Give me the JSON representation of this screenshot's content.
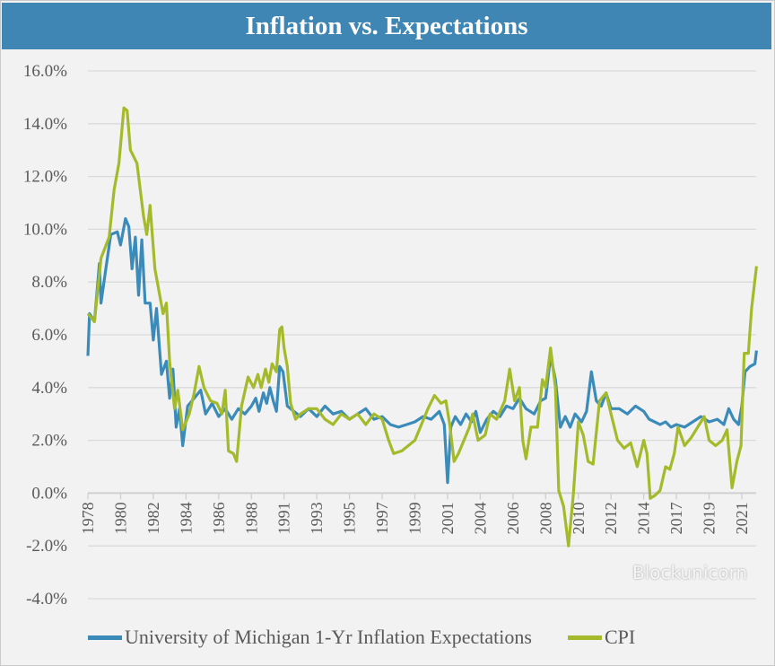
{
  "header": {
    "title": "Inflation vs. Expectations"
  },
  "watermark": "Blockunicorn",
  "chart_data": {
    "type": "line",
    "title": "Inflation vs. Expectations",
    "xlabel": "",
    "ylabel": "",
    "ylim": [
      -4,
      16
    ],
    "y_ticks": [
      "16.0%",
      "14.0%",
      "12.0%",
      "10.0%",
      "8.0%",
      "6.0%",
      "4.0%",
      "2.0%",
      "0.0%",
      "-2.0%",
      "-4.0%"
    ],
    "y_tick_values": [
      16,
      14,
      12,
      10,
      8,
      6,
      4,
      2,
      0,
      -2,
      -4
    ],
    "x_ticks": [
      "1978",
      "1980",
      "1982",
      "1984",
      "1986",
      "1988",
      "1991",
      "1993",
      "1995",
      "1997",
      "1999",
      "2001",
      "2004",
      "2006",
      "2008",
      "2010",
      "2012",
      "2014",
      "2017",
      "2019",
      "2021"
    ],
    "grid": "horizontal",
    "legend_position": "bottom",
    "colors": {
      "michigan": "#3b8bba",
      "cpi": "#a5ba2a",
      "header": "#3f86b5"
    },
    "series": [
      {
        "name": "University of Michigan 1-Yr Inflation Expectations",
        "points": [
          [
            1978.0,
            5.2
          ],
          [
            1978.1,
            6.8
          ],
          [
            1978.4,
            6.5
          ],
          [
            1978.7,
            8.7
          ],
          [
            1978.8,
            7.2
          ],
          [
            1979.1,
            8.5
          ],
          [
            1979.4,
            9.8
          ],
          [
            1979.8,
            9.9
          ],
          [
            1980.0,
            9.4
          ],
          [
            1980.3,
            10.4
          ],
          [
            1980.5,
            10.1
          ],
          [
            1980.7,
            8.5
          ],
          [
            1980.9,
            9.7
          ],
          [
            1981.1,
            7.5
          ],
          [
            1981.3,
            9.6
          ],
          [
            1981.5,
            7.2
          ],
          [
            1981.8,
            7.2
          ],
          [
            1982.0,
            5.8
          ],
          [
            1982.2,
            7.0
          ],
          [
            1982.5,
            4.5
          ],
          [
            1982.8,
            5.0
          ],
          [
            1983.0,
            3.6
          ],
          [
            1983.2,
            4.7
          ],
          [
            1983.4,
            2.5
          ],
          [
            1983.6,
            3.2
          ],
          [
            1983.8,
            1.8
          ],
          [
            1984.1,
            3.3
          ],
          [
            1984.5,
            3.6
          ],
          [
            1984.9,
            3.9
          ],
          [
            1985.2,
            3.0
          ],
          [
            1985.6,
            3.4
          ],
          [
            1986.0,
            2.9
          ],
          [
            1986.4,
            3.2
          ],
          [
            1986.8,
            2.8
          ],
          [
            1987.2,
            3.2
          ],
          [
            1987.6,
            3.0
          ],
          [
            1988.0,
            3.3
          ],
          [
            1988.4,
            3.6
          ],
          [
            1988.7,
            3.1
          ],
          [
            1989.1,
            3.8
          ],
          [
            1989.4,
            3.4
          ],
          [
            1989.7,
            4.0
          ],
          [
            1990.0,
            3.5
          ],
          [
            1990.3,
            3.1
          ],
          [
            1990.6,
            4.8
          ],
          [
            1990.9,
            4.6
          ],
          [
            1991.2,
            3.3
          ],
          [
            1991.6,
            3.1
          ],
          [
            1992.0,
            2.9
          ],
          [
            1992.5,
            3.2
          ],
          [
            1993.0,
            2.9
          ],
          [
            1993.5,
            3.3
          ],
          [
            1994.0,
            3.0
          ],
          [
            1994.5,
            3.1
          ],
          [
            1995.0,
            2.8
          ],
          [
            1995.5,
            3.0
          ],
          [
            1996.0,
            3.2
          ],
          [
            1996.5,
            2.8
          ],
          [
            1997.0,
            2.9
          ],
          [
            1997.5,
            2.6
          ],
          [
            1998.0,
            2.5
          ],
          [
            1998.5,
            2.6
          ],
          [
            1999.0,
            2.7
          ],
          [
            1999.5,
            2.9
          ],
          [
            2000.0,
            2.8
          ],
          [
            2000.5,
            3.1
          ],
          [
            2000.8,
            2.6
          ],
          [
            2001.0,
            0.4
          ],
          [
            2001.3,
            2.5
          ],
          [
            2001.7,
            2.9
          ],
          [
            2002.2,
            2.6
          ],
          [
            2002.7,
            3.0
          ],
          [
            2003.2,
            2.7
          ],
          [
            2003.6,
            3.1
          ],
          [
            2004.0,
            2.3
          ],
          [
            2004.4,
            2.8
          ],
          [
            2004.8,
            3.1
          ],
          [
            2005.2,
            2.9
          ],
          [
            2005.6,
            3.3
          ],
          [
            2006.0,
            3.2
          ],
          [
            2006.4,
            3.6
          ],
          [
            2006.8,
            3.2
          ],
          [
            2007.3,
            3.0
          ],
          [
            2007.7,
            3.5
          ],
          [
            2008.0,
            3.6
          ],
          [
            2008.3,
            5.2
          ],
          [
            2008.6,
            4.3
          ],
          [
            2008.9,
            2.5
          ],
          [
            2009.2,
            2.9
          ],
          [
            2009.5,
            2.5
          ],
          [
            2009.8,
            3.0
          ],
          [
            2010.2,
            2.7
          ],
          [
            2010.5,
            3.1
          ],
          [
            2010.8,
            4.6
          ],
          [
            2011.1,
            3.5
          ],
          [
            2011.4,
            3.3
          ],
          [
            2011.7,
            3.8
          ],
          [
            2012.0,
            3.2
          ],
          [
            2012.5,
            3.2
          ],
          [
            2013.0,
            3.0
          ],
          [
            2013.5,
            3.3
          ],
          [
            2014.0,
            3.1
          ],
          [
            2014.5,
            2.8
          ],
          [
            2015.0,
            2.7
          ],
          [
            2015.5,
            2.6
          ],
          [
            2016.0,
            2.7
          ],
          [
            2016.5,
            2.5
          ],
          [
            2017.0,
            2.6
          ],
          [
            2017.5,
            2.5
          ],
          [
            2018.0,
            2.7
          ],
          [
            2018.5,
            2.9
          ],
          [
            2019.0,
            2.7
          ],
          [
            2019.5,
            2.8
          ],
          [
            2019.9,
            2.6
          ],
          [
            2020.2,
            3.2
          ],
          [
            2020.5,
            2.8
          ],
          [
            2020.8,
            2.6
          ],
          [
            2021.0,
            3.3
          ],
          [
            2021.2,
            4.6
          ],
          [
            2021.5,
            4.8
          ],
          [
            2021.8,
            4.9
          ],
          [
            2021.9,
            5.4
          ]
        ]
      },
      {
        "name": "CPI",
        "points": [
          [
            1978.0,
            6.8
          ],
          [
            1978.4,
            6.5
          ],
          [
            1978.8,
            8.9
          ],
          [
            1979.3,
            9.7
          ],
          [
            1979.6,
            11.5
          ],
          [
            1979.9,
            12.5
          ],
          [
            1980.2,
            14.6
          ],
          [
            1980.4,
            14.5
          ],
          [
            1980.6,
            13.0
          ],
          [
            1981.0,
            12.5
          ],
          [
            1981.4,
            10.5
          ],
          [
            1981.6,
            9.8
          ],
          [
            1981.8,
            10.9
          ],
          [
            1982.1,
            8.5
          ],
          [
            1982.6,
            6.8
          ],
          [
            1982.8,
            7.2
          ],
          [
            1983.0,
            5.0
          ],
          [
            1983.3,
            3.2
          ],
          [
            1983.5,
            3.9
          ],
          [
            1983.8,
            2.4
          ],
          [
            1984.2,
            3.0
          ],
          [
            1984.5,
            3.8
          ],
          [
            1984.8,
            4.8
          ],
          [
            1985.1,
            4.0
          ],
          [
            1985.5,
            3.5
          ],
          [
            1985.9,
            3.4
          ],
          [
            1986.2,
            3.0
          ],
          [
            1986.4,
            3.9
          ],
          [
            1986.6,
            1.6
          ],
          [
            1986.9,
            1.5
          ],
          [
            1987.1,
            1.2
          ],
          [
            1987.4,
            3.3
          ],
          [
            1987.8,
            4.4
          ],
          [
            1988.2,
            4.0
          ],
          [
            1988.6,
            4.5
          ],
          [
            1988.9,
            4.0
          ],
          [
            1989.3,
            4.7
          ],
          [
            1989.6,
            4.2
          ],
          [
            1989.9,
            4.9
          ],
          [
            1990.3,
            4.6
          ],
          [
            1990.6,
            6.2
          ],
          [
            1990.8,
            6.3
          ],
          [
            1991.0,
            5.5
          ],
          [
            1991.2,
            4.8
          ],
          [
            1991.4,
            3.4
          ],
          [
            1991.7,
            2.8
          ],
          [
            1992.0,
            3.0
          ],
          [
            1992.5,
            3.2
          ],
          [
            1993.0,
            3.2
          ],
          [
            1993.5,
            2.8
          ],
          [
            1994.0,
            2.6
          ],
          [
            1994.5,
            3.0
          ],
          [
            1995.0,
            2.8
          ],
          [
            1995.5,
            3.0
          ],
          [
            1996.0,
            2.6
          ],
          [
            1996.5,
            3.0
          ],
          [
            1997.0,
            2.8
          ],
          [
            1997.4,
            2.0
          ],
          [
            1997.7,
            1.5
          ],
          [
            1998.2,
            1.6
          ],
          [
            1998.6,
            1.8
          ],
          [
            1999.0,
            2.0
          ],
          [
            1999.4,
            2.6
          ],
          [
            1999.8,
            3.2
          ],
          [
            2000.2,
            3.7
          ],
          [
            2000.6,
            3.4
          ],
          [
            2000.9,
            3.5
          ],
          [
            2001.2,
            2.6
          ],
          [
            2001.6,
            1.2
          ],
          [
            2002.0,
            1.5
          ],
          [
            2002.5,
            2.0
          ],
          [
            2003.0,
            2.5
          ],
          [
            2003.3,
            3.0
          ],
          [
            2003.8,
            2.0
          ],
          [
            2004.3,
            2.2
          ],
          [
            2004.6,
            3.0
          ],
          [
            2005.0,
            2.8
          ],
          [
            2005.5,
            3.5
          ],
          [
            2005.8,
            4.7
          ],
          [
            2006.1,
            3.5
          ],
          [
            2006.4,
            4.0
          ],
          [
            2006.6,
            2.0
          ],
          [
            2006.8,
            1.3
          ],
          [
            2007.1,
            2.5
          ],
          [
            2007.5,
            2.5
          ],
          [
            2007.8,
            4.3
          ],
          [
            2008.0,
            4.0
          ],
          [
            2008.3,
            5.5
          ],
          [
            2008.6,
            4.0
          ],
          [
            2008.8,
            0.1
          ],
          [
            2009.1,
            -0.5
          ],
          [
            2009.4,
            -2.0
          ],
          [
            2009.7,
            0.0
          ],
          [
            2010.0,
            2.7
          ],
          [
            2010.3,
            2.2
          ],
          [
            2010.6,
            1.2
          ],
          [
            2010.9,
            1.1
          ],
          [
            2011.3,
            3.5
          ],
          [
            2011.7,
            3.8
          ],
          [
            2012.0,
            3.0
          ],
          [
            2012.4,
            2.0
          ],
          [
            2012.8,
            1.7
          ],
          [
            2013.2,
            1.9
          ],
          [
            2013.6,
            1.0
          ],
          [
            2014.0,
            2.0
          ],
          [
            2014.3,
            1.5
          ],
          [
            2014.6,
            -0.2
          ],
          [
            2015.0,
            -0.1
          ],
          [
            2015.5,
            0.1
          ],
          [
            2016.0,
            1.0
          ],
          [
            2016.4,
            0.9
          ],
          [
            2016.8,
            1.5
          ],
          [
            2017.1,
            2.5
          ],
          [
            2017.5,
            1.8
          ],
          [
            2017.9,
            2.1
          ],
          [
            2018.4,
            2.6
          ],
          [
            2018.7,
            2.9
          ],
          [
            2019.0,
            2.0
          ],
          [
            2019.4,
            1.8
          ],
          [
            2019.8,
            2.0
          ],
          [
            2020.1,
            2.4
          ],
          [
            2020.4,
            0.2
          ],
          [
            2020.7,
            1.2
          ],
          [
            2020.95,
            1.8
          ],
          [
            2021.1,
            4.5
          ],
          [
            2021.15,
            5.3
          ],
          [
            2021.4,
            5.3
          ],
          [
            2021.6,
            7.0
          ],
          [
            2021.9,
            8.6
          ]
        ]
      }
    ]
  }
}
